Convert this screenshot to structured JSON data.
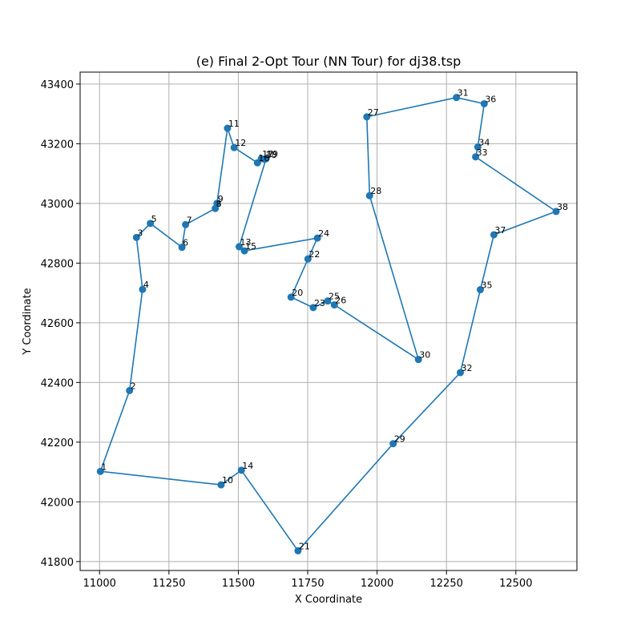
{
  "chart_data": {
    "type": "line",
    "title": "(e) Final 2-Opt Tour (NN Tour) for dj38.tsp",
    "xlabel": "X Coordinate",
    "ylabel": "Y Coordinate",
    "xlim": [
      10930,
      12720
    ],
    "ylim": [
      41770,
      43440
    ],
    "xticks": [
      11000,
      11250,
      11500,
      11750,
      12000,
      12250,
      12500
    ],
    "yticks": [
      41800,
      42000,
      42200,
      42400,
      42600,
      42800,
      43000,
      43200,
      43400
    ],
    "grid": true,
    "color": "#1f77b4",
    "points": [
      {
        "label": "1",
        "x": 11003,
        "y": 42102
      },
      {
        "label": "2",
        "x": 11108,
        "y": 42373
      },
      {
        "label": "3",
        "x": 11133,
        "y": 42886
      },
      {
        "label": "4",
        "x": 11155,
        "y": 42712
      },
      {
        "label": "5",
        "x": 11183,
        "y": 42933
      },
      {
        "label": "6",
        "x": 11297,
        "y": 42853
      },
      {
        "label": "7",
        "x": 11310,
        "y": 42929
      },
      {
        "label": "8",
        "x": 11417,
        "y": 42983
      },
      {
        "label": "9",
        "x": 11423,
        "y": 43000
      },
      {
        "label": "10",
        "x": 11438,
        "y": 42057
      },
      {
        "label": "11",
        "x": 11461,
        "y": 43252
      },
      {
        "label": "12",
        "x": 11485,
        "y": 43187
      },
      {
        "label": "13",
        "x": 11503,
        "y": 42855
      },
      {
        "label": "14",
        "x": 11511,
        "y": 42106
      },
      {
        "label": "15",
        "x": 11522,
        "y": 42841
      },
      {
        "label": "16",
        "x": 11569,
        "y": 43136
      },
      {
        "label": "17",
        "x": 11583,
        "y": 43150
      },
      {
        "label": "18",
        "x": 11595,
        "y": 43148
      },
      {
        "label": "19",
        "x": 11600,
        "y": 43150
      },
      {
        "label": "20",
        "x": 11690,
        "y": 42686
      },
      {
        "label": "21",
        "x": 11715,
        "y": 41836
      },
      {
        "label": "22",
        "x": 11751,
        "y": 42814
      },
      {
        "label": "23",
        "x": 11770,
        "y": 42651
      },
      {
        "label": "24",
        "x": 11785,
        "y": 42884
      },
      {
        "label": "25",
        "x": 11822,
        "y": 42673
      },
      {
        "label": "26",
        "x": 11846,
        "y": 42660
      },
      {
        "label": "27",
        "x": 11963,
        "y": 43290
      },
      {
        "label": "28",
        "x": 11973,
        "y": 43026
      },
      {
        "label": "29",
        "x": 12058,
        "y": 42195
      },
      {
        "label": "30",
        "x": 12149,
        "y": 42477
      },
      {
        "label": "31",
        "x": 12286,
        "y": 43355
      },
      {
        "label": "32",
        "x": 12300,
        "y": 42433
      },
      {
        "label": "33",
        "x": 12355,
        "y": 43156
      },
      {
        "label": "34",
        "x": 12363,
        "y": 43189
      },
      {
        "label": "35",
        "x": 12372,
        "y": 42711
      },
      {
        "label": "36",
        "x": 12386,
        "y": 43334
      },
      {
        "label": "37",
        "x": 12421,
        "y": 42895
      },
      {
        "label": "38",
        "x": 12645,
        "y": 42973
      }
    ],
    "tour": [
      "1",
      "2",
      "4",
      "3",
      "5",
      "6",
      "7",
      "8",
      "9",
      "11",
      "12",
      "16",
      "17",
      "18",
      "19",
      "13",
      "15",
      "24",
      "22",
      "20",
      "23",
      "25",
      "26",
      "30",
      "28",
      "27",
      "31",
      "36",
      "34",
      "33",
      "38",
      "37",
      "35",
      "32",
      "29",
      "21",
      "14",
      "10",
      "1"
    ]
  }
}
